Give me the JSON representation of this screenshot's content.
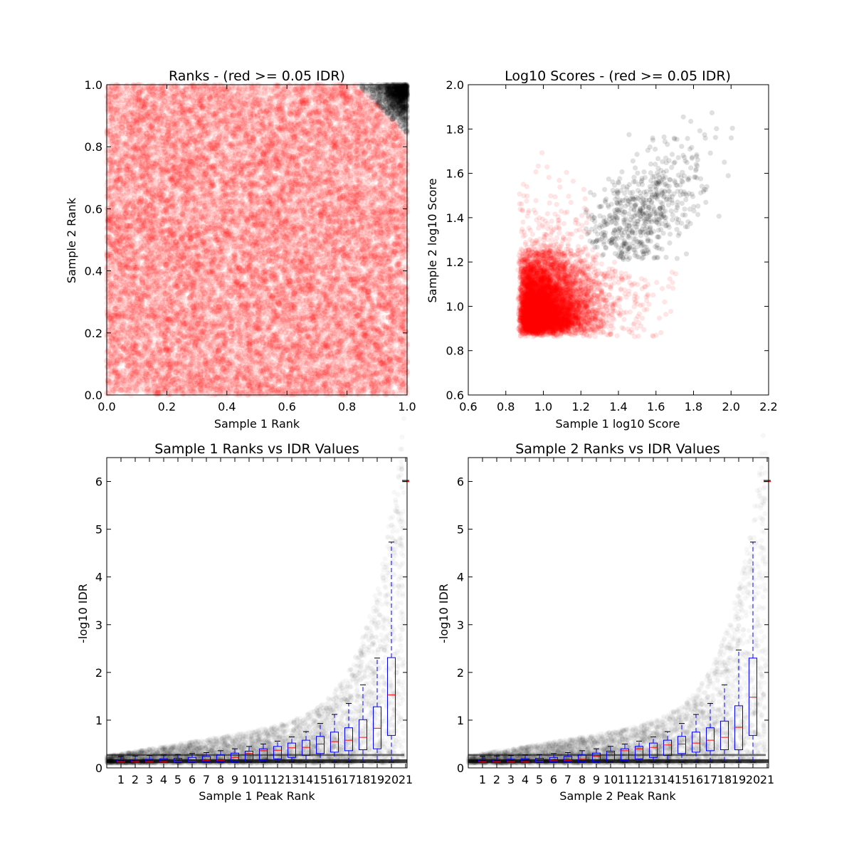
{
  "chart_data": [
    {
      "id": "ranks",
      "type": "scatter",
      "title": "Ranks - (red >= 0.05 IDR)",
      "xlabel": "Sample 1 Rank",
      "ylabel": "Sample 2 Rank",
      "xlim": [
        0.0,
        1.0
      ],
      "ylim": [
        0.0,
        1.0
      ],
      "xticks": [
        0.0,
        0.2,
        0.4,
        0.6,
        0.8,
        1.0
      ],
      "yticks": [
        0.0,
        0.2,
        0.4,
        0.6,
        0.8,
        1.0
      ],
      "xtick_labels": [
        "0.0",
        "0.2",
        "0.4",
        "0.6",
        "0.8",
        "1.0"
      ],
      "ytick_labels": [
        "0.0",
        "0.2",
        "0.4",
        "0.6",
        "0.8",
        "1.0"
      ],
      "grid": false,
      "series": [
        {
          "color": "#ff0000",
          "opacity": 0.08,
          "region": "everywhere except top-right corner",
          "approx_point_count": 20000
        },
        {
          "color": "#000000",
          "opacity": 0.1,
          "region": "top-right corner (x + y above ~1.85)",
          "approx_point_count": 700
        }
      ]
    },
    {
      "id": "scores",
      "type": "scatter",
      "title": "Log10 Scores - (red >= 0.05 IDR)",
      "xlabel": "Sample 1 log10 Score",
      "ylabel": "Sample 2 log10 Score",
      "xlim": [
        0.6,
        2.2
      ],
      "ylim": [
        0.6,
        2.0
      ],
      "xticks": [
        0.6,
        0.8,
        1.0,
        1.2,
        1.4,
        1.6,
        1.8,
        2.0,
        2.2
      ],
      "yticks": [
        0.6,
        0.8,
        1.0,
        1.2,
        1.4,
        1.6,
        1.8,
        2.0
      ],
      "xtick_labels": [
        "0.6",
        "0.8",
        "1.0",
        "1.2",
        "1.4",
        "1.6",
        "1.8",
        "2.0",
        "2.2"
      ],
      "ytick_labels": [
        "0.6",
        "0.8",
        "1.0",
        "1.2",
        "1.4",
        "1.6",
        "1.8",
        "2.0"
      ],
      "grid": false,
      "series": [
        {
          "color": "#ff0000",
          "opacity": 0.1,
          "region": "dense block x 0.86-1.3, y 0.86-1.25",
          "approx_point_count": 9000
        },
        {
          "color": "#000000",
          "opacity": 0.12,
          "region": "x 1.25-2.05, y 1.2-1.93",
          "approx_point_count": 700
        }
      ]
    },
    {
      "id": "s1-idr",
      "type": "box",
      "title": "Sample 1 Ranks vs IDR Values",
      "xlabel": "Sample 1 Peak Rank",
      "ylabel": "-log10 IDR",
      "xlim": [
        0,
        21
      ],
      "ylim": [
        0,
        6.5
      ],
      "categories": [
        "1",
        "2",
        "3",
        "4",
        "5",
        "6",
        "7",
        "8",
        "9",
        "10",
        "11",
        "12",
        "13",
        "14",
        "15",
        "16",
        "17",
        "18",
        "19",
        "20",
        "21"
      ],
      "yticks": [
        0,
        1,
        2,
        3,
        4,
        5,
        6
      ],
      "ytick_labels": [
        "0",
        "1",
        "2",
        "3",
        "4",
        "5",
        "6"
      ],
      "grid": false,
      "boxes": [
        {
          "pos": 1,
          "whislo": 0.12,
          "q1": 0.13,
          "med": 0.13,
          "q3": 0.17,
          "whishi": 0.24
        },
        {
          "pos": 2,
          "whislo": 0.12,
          "q1": 0.13,
          "med": 0.13,
          "q3": 0.17,
          "whishi": 0.25
        },
        {
          "pos": 3,
          "whislo": 0.12,
          "q1": 0.13,
          "med": 0.13,
          "q3": 0.18,
          "whishi": 0.26
        },
        {
          "pos": 4,
          "whislo": 0.12,
          "q1": 0.13,
          "med": 0.13,
          "q3": 0.19,
          "whishi": 0.27
        },
        {
          "pos": 5,
          "whislo": 0.12,
          "q1": 0.13,
          "med": 0.14,
          "q3": 0.2,
          "whishi": 0.28
        },
        {
          "pos": 6,
          "whislo": 0.12,
          "q1": 0.13,
          "med": 0.14,
          "q3": 0.22,
          "whishi": 0.3
        },
        {
          "pos": 7,
          "whislo": 0.12,
          "q1": 0.13,
          "med": 0.16,
          "q3": 0.24,
          "whishi": 0.32
        },
        {
          "pos": 8,
          "whislo": 0.12,
          "q1": 0.13,
          "med": 0.16,
          "q3": 0.27,
          "whishi": 0.36
        },
        {
          "pos": 9,
          "whislo": 0.12,
          "q1": 0.13,
          "med": 0.22,
          "q3": 0.31,
          "whishi": 0.4
        },
        {
          "pos": 10,
          "whislo": 0.12,
          "q1": 0.14,
          "med": 0.3,
          "q3": 0.35,
          "whishi": 0.45
        },
        {
          "pos": 11,
          "whislo": 0.12,
          "q1": 0.16,
          "med": 0.36,
          "q3": 0.4,
          "whishi": 0.5
        },
        {
          "pos": 12,
          "whislo": 0.12,
          "q1": 0.19,
          "med": 0.37,
          "q3": 0.45,
          "whishi": 0.56
        },
        {
          "pos": 13,
          "whislo": 0.12,
          "q1": 0.22,
          "med": 0.42,
          "q3": 0.52,
          "whishi": 0.65
        },
        {
          "pos": 14,
          "whislo": 0.12,
          "q1": 0.26,
          "med": 0.43,
          "q3": 0.58,
          "whishi": 0.76
        },
        {
          "pos": 15,
          "whislo": 0.12,
          "q1": 0.3,
          "med": 0.5,
          "q3": 0.66,
          "whishi": 0.93
        },
        {
          "pos": 16,
          "whislo": 0.12,
          "q1": 0.33,
          "med": 0.55,
          "q3": 0.75,
          "whishi": 1.12
        },
        {
          "pos": 17,
          "whislo": 0.12,
          "q1": 0.36,
          "med": 0.58,
          "q3": 0.84,
          "whishi": 1.35
        },
        {
          "pos": 18,
          "whislo": 0.12,
          "q1": 0.38,
          "med": 0.64,
          "q3": 1.01,
          "whishi": 1.74
        },
        {
          "pos": 19,
          "whislo": 0.12,
          "q1": 0.4,
          "med": 0.83,
          "q3": 1.28,
          "whishi": 2.3
        },
        {
          "pos": 20,
          "whislo": 0.12,
          "q1": 0.68,
          "med": 1.53,
          "q3": 2.31,
          "whishi": 4.73
        },
        {
          "pos": 21,
          "whislo": 6.0,
          "q1": 6.0,
          "med": 6.0,
          "q3": 6.0,
          "whishi": 6.0
        }
      ]
    },
    {
      "id": "s2-idr",
      "type": "box",
      "title": "Sample 2 Ranks vs IDR Values",
      "xlabel": "Sample 2 Peak Rank",
      "ylabel": "-log10 IDR",
      "xlim": [
        0,
        21
      ],
      "ylim": [
        0,
        6.5
      ],
      "categories": [
        "1",
        "2",
        "3",
        "4",
        "5",
        "6",
        "7",
        "8",
        "9",
        "10",
        "11",
        "12",
        "13",
        "14",
        "15",
        "16",
        "17",
        "18",
        "19",
        "20",
        "21"
      ],
      "yticks": [
        0,
        1,
        2,
        3,
        4,
        5,
        6
      ],
      "ytick_labels": [
        "0",
        "1",
        "2",
        "3",
        "4",
        "5",
        "6"
      ],
      "grid": false,
      "boxes": [
        {
          "pos": 1,
          "whislo": 0.12,
          "q1": 0.13,
          "med": 0.13,
          "q3": 0.17,
          "whishi": 0.24
        },
        {
          "pos": 2,
          "whislo": 0.12,
          "q1": 0.13,
          "med": 0.13,
          "q3": 0.17,
          "whishi": 0.25
        },
        {
          "pos": 3,
          "whislo": 0.12,
          "q1": 0.13,
          "med": 0.13,
          "q3": 0.18,
          "whishi": 0.26
        },
        {
          "pos": 4,
          "whislo": 0.12,
          "q1": 0.13,
          "med": 0.13,
          "q3": 0.19,
          "whishi": 0.27
        },
        {
          "pos": 5,
          "whislo": 0.12,
          "q1": 0.13,
          "med": 0.14,
          "q3": 0.2,
          "whishi": 0.28
        },
        {
          "pos": 6,
          "whislo": 0.12,
          "q1": 0.13,
          "med": 0.15,
          "q3": 0.22,
          "whishi": 0.3
        },
        {
          "pos": 7,
          "whislo": 0.12,
          "q1": 0.13,
          "med": 0.16,
          "q3": 0.24,
          "whishi": 0.32
        },
        {
          "pos": 8,
          "whislo": 0.12,
          "q1": 0.13,
          "med": 0.18,
          "q3": 0.27,
          "whishi": 0.36
        },
        {
          "pos": 9,
          "whislo": 0.12,
          "q1": 0.13,
          "med": 0.24,
          "q3": 0.31,
          "whishi": 0.4
        },
        {
          "pos": 10,
          "whislo": 0.12,
          "q1": 0.14,
          "med": 0.32,
          "q3": 0.35,
          "whishi": 0.45
        },
        {
          "pos": 11,
          "whislo": 0.12,
          "q1": 0.16,
          "med": 0.36,
          "q3": 0.4,
          "whishi": 0.5
        },
        {
          "pos": 12,
          "whislo": 0.12,
          "q1": 0.19,
          "med": 0.4,
          "q3": 0.45,
          "whishi": 0.56
        },
        {
          "pos": 13,
          "whislo": 0.12,
          "q1": 0.22,
          "med": 0.43,
          "q3": 0.52,
          "whishi": 0.65
        },
        {
          "pos": 14,
          "whislo": 0.12,
          "q1": 0.26,
          "med": 0.48,
          "q3": 0.58,
          "whishi": 0.76
        },
        {
          "pos": 15,
          "whislo": 0.12,
          "q1": 0.3,
          "med": 0.5,
          "q3": 0.66,
          "whishi": 0.93
        },
        {
          "pos": 16,
          "whislo": 0.12,
          "q1": 0.33,
          "med": 0.52,
          "q3": 0.75,
          "whishi": 1.12
        },
        {
          "pos": 17,
          "whislo": 0.12,
          "q1": 0.36,
          "med": 0.58,
          "q3": 0.84,
          "whishi": 1.35
        },
        {
          "pos": 18,
          "whislo": 0.12,
          "q1": 0.38,
          "med": 0.64,
          "q3": 0.98,
          "whishi": 1.74
        },
        {
          "pos": 19,
          "whislo": 0.12,
          "q1": 0.38,
          "med": 0.85,
          "q3": 1.3,
          "whishi": 2.47
        },
        {
          "pos": 20,
          "whislo": 0.12,
          "q1": 0.68,
          "med": 1.48,
          "q3": 2.3,
          "whishi": 4.73
        },
        {
          "pos": 21,
          "whislo": 6.0,
          "q1": 6.0,
          "med": 6.0,
          "q3": 6.0,
          "whishi": 6.0
        }
      ]
    }
  ]
}
